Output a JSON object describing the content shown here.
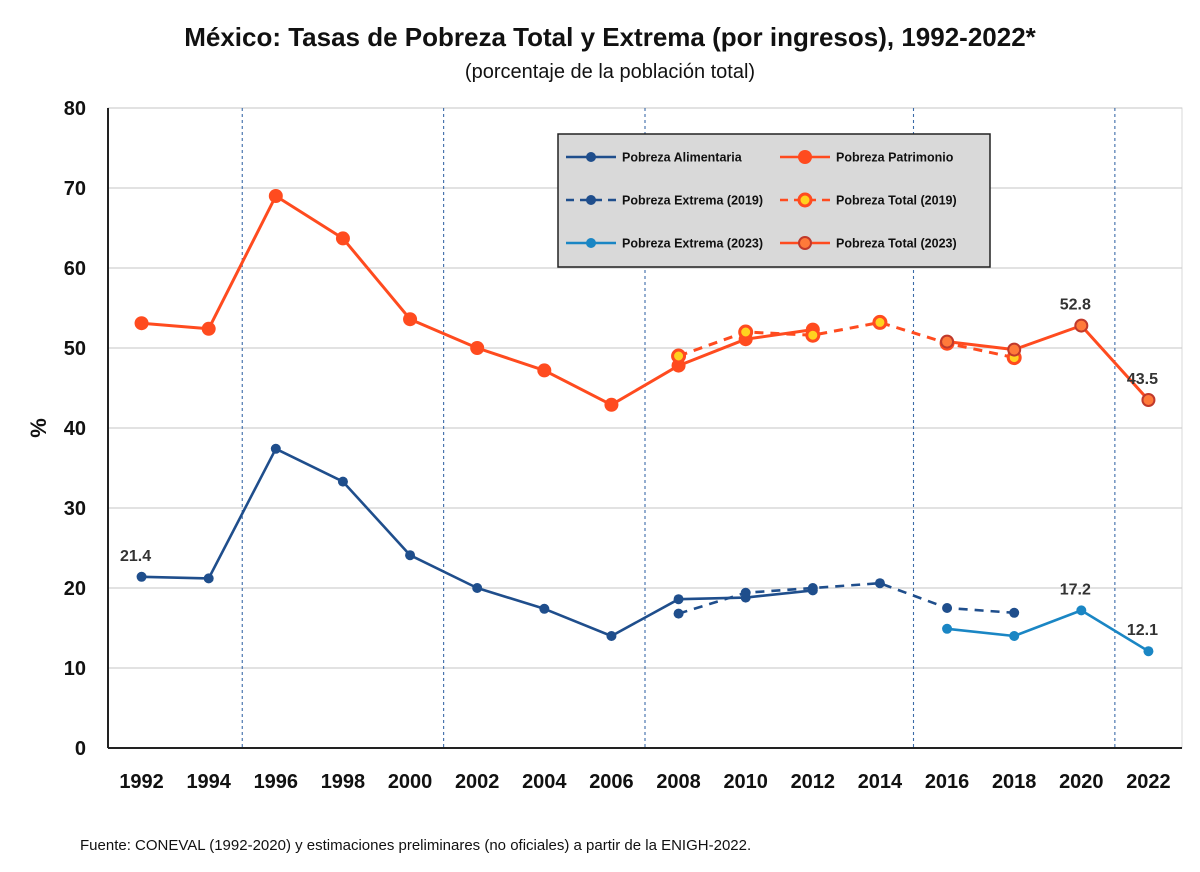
{
  "chart_data": {
    "type": "line",
    "title": "México: Tasas de Pobreza Total y Extrema (por ingresos), 1992-2022*",
    "subtitle": "(porcentaje de la población total)",
    "ylabel": "%",
    "ylim": [
      0,
      80
    ],
    "yticks": [
      "0",
      "10",
      "20",
      "30",
      "40",
      "50",
      "60",
      "70",
      "80"
    ],
    "categories": [
      "1992",
      "1994",
      "1996",
      "1998",
      "2000",
      "2002",
      "2004",
      "2006",
      "2008",
      "2010",
      "2012",
      "2014",
      "2016",
      "2018",
      "2020",
      "2022"
    ],
    "vertical_gridlines_after": [
      "1994",
      "2000",
      "2006",
      "2014",
      "2020"
    ],
    "grid": true,
    "legend_position": "top-center",
    "source": "Fuente: CONEVAL (1992-2020) y estimaciones preliminares (no oficiales) a partir de la ENIGH-2022.",
    "series": [
      {
        "name": "Pobreza Alimentaria",
        "color": "#1f4e8c",
        "style": "solid",
        "marker": "dot",
        "points": [
          {
            "x": "1992",
            "y": 21.4
          },
          {
            "x": "1994",
            "y": 21.2
          },
          {
            "x": "1996",
            "y": 37.4
          },
          {
            "x": "1998",
            "y": 33.3
          },
          {
            "x": "2000",
            "y": 24.1
          },
          {
            "x": "2002",
            "y": 20.0
          },
          {
            "x": "2004",
            "y": 17.4
          },
          {
            "x": "2006",
            "y": 14.0
          },
          {
            "x": "2008",
            "y": 18.6
          },
          {
            "x": "2010",
            "y": 18.8
          },
          {
            "x": "2012",
            "y": 19.7
          }
        ]
      },
      {
        "name": "Pobreza Patrimonio",
        "color": "#ff4b1f",
        "style": "solid",
        "marker": "dot",
        "points": [
          {
            "x": "1992",
            "y": 53.1
          },
          {
            "x": "1994",
            "y": 52.4
          },
          {
            "x": "1996",
            "y": 69.0
          },
          {
            "x": "1998",
            "y": 63.7
          },
          {
            "x": "2000",
            "y": 53.6
          },
          {
            "x": "2002",
            "y": 50.0
          },
          {
            "x": "2004",
            "y": 47.2
          },
          {
            "x": "2006",
            "y": 42.9
          },
          {
            "x": "2008",
            "y": 47.8
          },
          {
            "x": "2010",
            "y": 51.1
          },
          {
            "x": "2012",
            "y": 52.3
          }
        ]
      },
      {
        "name": "Pobreza Extrema (2019)",
        "color": "#1f4e8c",
        "style": "dashed",
        "marker": "dot",
        "points": [
          {
            "x": "2008",
            "y": 16.8
          },
          {
            "x": "2010",
            "y": 19.4
          },
          {
            "x": "2012",
            "y": 20.0
          },
          {
            "x": "2014",
            "y": 20.6
          },
          {
            "x": "2016",
            "y": 17.5
          },
          {
            "x": "2018",
            "y": 16.9
          }
        ]
      },
      {
        "name": "Pobreza Total (2019)",
        "color": "#ff4b1f",
        "style": "dashed",
        "marker": "ring-yellow",
        "points": [
          {
            "x": "2008",
            "y": 49.0
          },
          {
            "x": "2010",
            "y": 52.0
          },
          {
            "x": "2012",
            "y": 51.6
          },
          {
            "x": "2014",
            "y": 53.2
          },
          {
            "x": "2016",
            "y": 50.6
          },
          {
            "x": "2018",
            "y": 48.8
          }
        ]
      },
      {
        "name": "Pobreza Extrema (2023)",
        "color": "#1a86c4",
        "style": "solid",
        "marker": "dot",
        "points": [
          {
            "x": "2016",
            "y": 14.9
          },
          {
            "x": "2018",
            "y": 14.0
          },
          {
            "x": "2020",
            "y": 17.2
          },
          {
            "x": "2022",
            "y": 12.1
          }
        ]
      },
      {
        "name": "Pobreza Total (2023)",
        "color": "#ff4b1f",
        "style": "solid",
        "marker": "ring-orange",
        "points": [
          {
            "x": "2016",
            "y": 50.8
          },
          {
            "x": "2018",
            "y": 49.8
          },
          {
            "x": "2020",
            "y": 52.8
          },
          {
            "x": "2022",
            "y": 43.5
          }
        ]
      }
    ],
    "annotations": [
      {
        "text": "21.4",
        "x": "1992",
        "y": 21.4
      },
      {
        "text": "52.8",
        "x": "2020",
        "y": 52.8
      },
      {
        "text": "43.5",
        "x": "2022",
        "y": 43.5
      },
      {
        "text": "17.2",
        "x": "2020",
        "y": 17.2
      },
      {
        "text": "12.1",
        "x": "2022",
        "y": 12.1
      }
    ]
  }
}
